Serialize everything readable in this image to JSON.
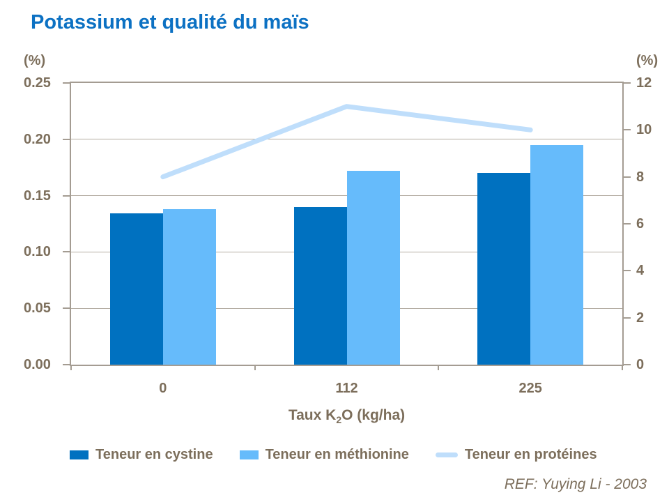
{
  "title": "Potassium et qualité du maïs",
  "ref": "REF: Yuying Li - 2003",
  "colors": {
    "title_blue": "#0C71C3",
    "label_taupe": "#7C6E5B",
    "axis_line": "#A49C92",
    "gridline": "#B3ABA1"
  },
  "axes": {
    "left_unit": "(%)",
    "right_unit": "(%)",
    "x_title": {
      "pre": "Taux K",
      "sub": "2",
      "post": "O (kg/ha)"
    }
  },
  "chart_data": {
    "type": "combo",
    "categories": [
      "0",
      "112",
      "225"
    ],
    "series": [
      {
        "name": "Teneur en cystine",
        "type": "bar",
        "axis": "left",
        "color": "#0071C0",
        "values": [
          0.134,
          0.14,
          0.17
        ]
      },
      {
        "name": "Teneur en méthionine",
        "type": "bar",
        "axis": "left",
        "color": "#66BBFB",
        "values": [
          0.138,
          0.172,
          0.195
        ]
      },
      {
        "name": "Teneur en protéines",
        "type": "line",
        "axis": "right",
        "color": "#BFDEFB",
        "values": [
          8.0,
          11.0,
          10.0
        ]
      }
    ],
    "left_axis": {
      "unit": "(%)",
      "min": 0.0,
      "max": 0.25,
      "tick_step": 0.05,
      "ticks": [
        "0.25",
        "0.20",
        "0.15",
        "0.10",
        "0.05",
        "0.00"
      ]
    },
    "right_axis": {
      "unit": "(%)",
      "min": 0,
      "max": 12,
      "tick_step": 2,
      "ticks": [
        "12",
        "10",
        "8",
        "6",
        "4",
        "2",
        "0"
      ]
    },
    "xlabel": "Taux K2O (kg/ha)",
    "grid": true,
    "legend_position": "bottom"
  }
}
